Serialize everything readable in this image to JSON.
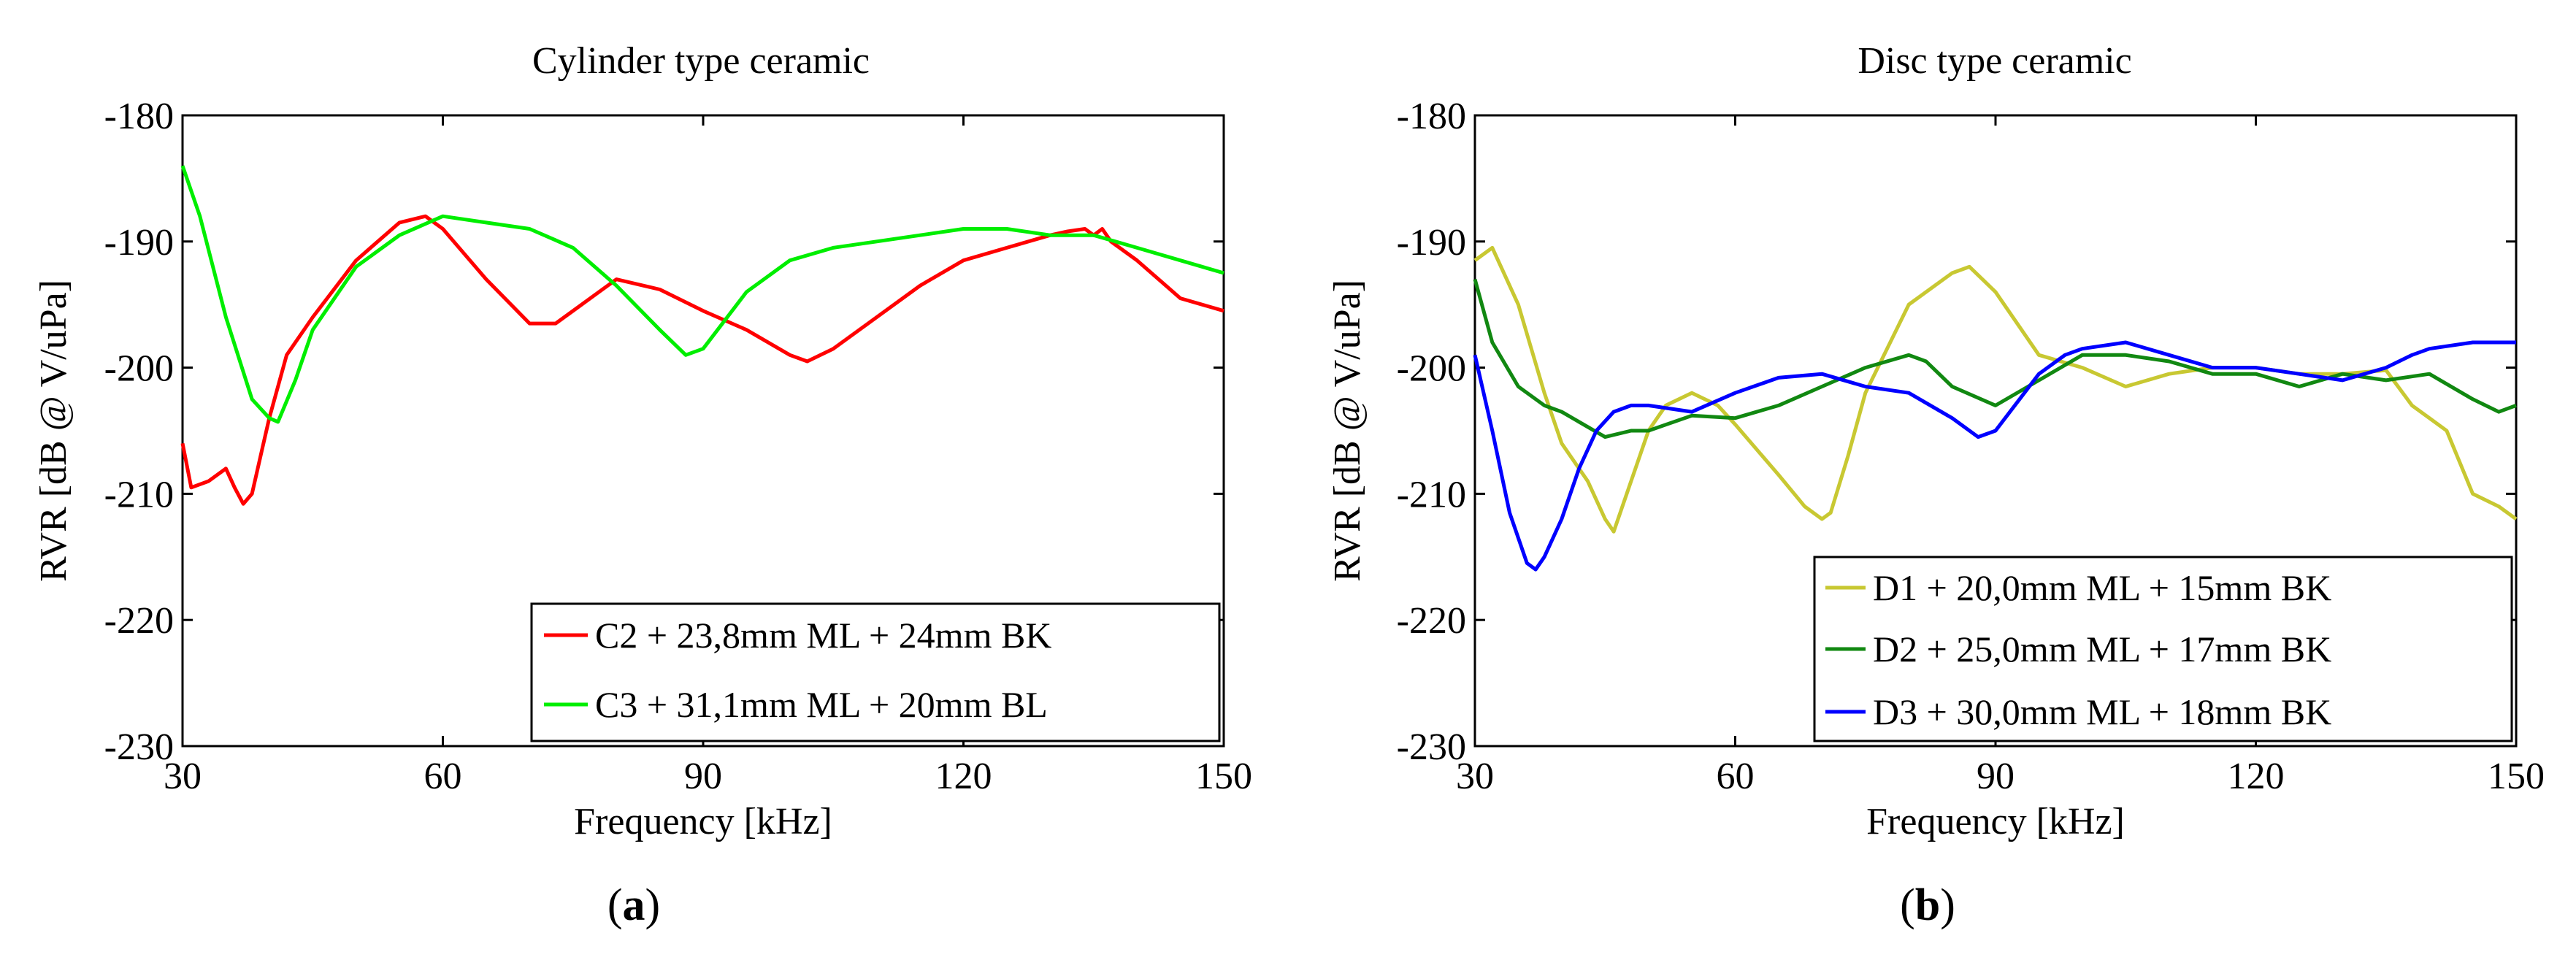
{
  "chart_data": [
    {
      "type": "line",
      "panel_label": "a",
      "title": "Cylinder type ceramic",
      "xlabel": "Frequency [kHz]",
      "ylabel": "RVR [dB @ V/uPa]",
      "xlim": [
        30,
        150
      ],
      "ylim": [
        -230,
        -180
      ],
      "xticks": [
        "30",
        "60",
        "90",
        "120",
        "150"
      ],
      "yticks": [
        "-180",
        "-190",
        "-200",
        "-210",
        "-220",
        "-230"
      ],
      "legend_position": "bottom-right",
      "series": [
        {
          "name": "C2 + 23,8mm ML + 24mm BK",
          "color": "#ff0000",
          "x": [
            30,
            31,
            33,
            35,
            36,
            37,
            38,
            39,
            40,
            42,
            45,
            50,
            55,
            58,
            60,
            65,
            70,
            73,
            75,
            78,
            80,
            85,
            90,
            95,
            100,
            102,
            105,
            110,
            115,
            120,
            125,
            130,
            132,
            134,
            135,
            136,
            137,
            140,
            145,
            150
          ],
          "y": [
            -206,
            -209.5,
            -209,
            -208,
            -209.5,
            -210.8,
            -210,
            -207,
            -204,
            -199,
            -196,
            -191.5,
            -188.5,
            -188,
            -189,
            -193,
            -196.5,
            -196.5,
            -195.5,
            -194,
            -193,
            -193.8,
            -195.5,
            -197,
            -199,
            -199.5,
            -198.5,
            -196,
            -193.5,
            -191.5,
            -190.5,
            -189.5,
            -189.2,
            -189,
            -189.5,
            -189,
            -190,
            -191.5,
            -194.5,
            -195.5
          ]
        },
        {
          "name": "C3 + 31,1mm ML + 20mm BL",
          "color": "#00ee00",
          "x": [
            30,
            32,
            35,
            38,
            40,
            41,
            43,
            45,
            50,
            55,
            60,
            65,
            70,
            75,
            80,
            85,
            88,
            90,
            95,
            100,
            105,
            110,
            115,
            120,
            125,
            130,
            135,
            140,
            145,
            150
          ],
          "y": [
            -184,
            -188,
            -196,
            -202.5,
            -204,
            -204.3,
            -201,
            -197,
            -192,
            -189.5,
            -188,
            -188.5,
            -189,
            -190.5,
            -193.5,
            -197,
            -199,
            -198.5,
            -194,
            -191.5,
            -190.5,
            -190,
            -189.5,
            -189,
            -189,
            -189.5,
            -189.5,
            -190.5,
            -191.5,
            -192.5
          ]
        }
      ]
    },
    {
      "type": "line",
      "panel_label": "b",
      "title": "Disc type ceramic",
      "xlabel": "Frequency [kHz]",
      "ylabel": "RVR [dB @ V/uPa]",
      "xlim": [
        30,
        150
      ],
      "ylim": [
        -230,
        -180
      ],
      "xticks": [
        "30",
        "60",
        "90",
        "120",
        "150"
      ],
      "yticks": [
        "-180",
        "-190",
        "-200",
        "-210",
        "-220",
        "-230"
      ],
      "legend_position": "bottom-right",
      "series": [
        {
          "name": "D1 + 20,0mm ML + 15mm BK",
          "color": "#c8c832",
          "x": [
            30,
            32,
            35,
            38,
            40,
            43,
            45,
            46,
            48,
            50,
            52,
            55,
            58,
            60,
            65,
            68,
            70,
            71,
            73,
            75,
            80,
            85,
            87,
            90,
            95,
            100,
            105,
            110,
            115,
            120,
            125,
            130,
            135,
            138,
            140,
            142,
            145,
            148,
            150
          ],
          "y": [
            -191.5,
            -190.5,
            -195,
            -202,
            -206,
            -209,
            -212,
            -213,
            -209,
            -205,
            -203,
            -202,
            -203,
            -204.5,
            -208.5,
            -211,
            -212,
            -211.5,
            -207,
            -202,
            -195,
            -192.5,
            -192,
            -194,
            -199,
            -200,
            -201.5,
            -200.5,
            -200,
            -200,
            -200.5,
            -200.5,
            -200.2,
            -203,
            -204,
            -205,
            -210,
            -211,
            -212
          ]
        },
        {
          "name": "D2 + 25,0mm ML + 17mm BK",
          "color": "#118811",
          "x": [
            30,
            32,
            35,
            38,
            40,
            45,
            48,
            50,
            55,
            60,
            65,
            70,
            75,
            80,
            82,
            85,
            90,
            95,
            100,
            105,
            110,
            115,
            120,
            125,
            130,
            135,
            140,
            145,
            148,
            150
          ],
          "y": [
            -193,
            -198,
            -201.5,
            -203,
            -203.5,
            -205.5,
            -205,
            -205,
            -203.8,
            -204,
            -203,
            -201.5,
            -200,
            -199,
            -199.5,
            -201.5,
            -203,
            -201,
            -199,
            -199,
            -199.5,
            -200.5,
            -200.5,
            -201.5,
            -200.5,
            -201,
            -200.5,
            -202.5,
            -203.5,
            -203
          ]
        },
        {
          "name": "D3 + 30,0mm ML + 18mm BK",
          "color": "#0000ff",
          "x": [
            30,
            32,
            34,
            36,
            37,
            38,
            40,
            42,
            44,
            46,
            48,
            50,
            55,
            60,
            65,
            70,
            75,
            80,
            85,
            88,
            90,
            95,
            98,
            100,
            105,
            110,
            115,
            120,
            125,
            130,
            135,
            138,
            140,
            145,
            150
          ],
          "y": [
            -199,
            -205,
            -211.5,
            -215.5,
            -216,
            -215,
            -212,
            -208,
            -205,
            -203.5,
            -203,
            -203,
            -203.5,
            -202,
            -200.8,
            -200.5,
            -201.5,
            -202,
            -204,
            -205.5,
            -205,
            -200.5,
            -199,
            -198.5,
            -198,
            -199,
            -200,
            -200,
            -200.5,
            -201,
            -200,
            -199,
            -198.5,
            -198,
            -198
          ]
        }
      ]
    }
  ]
}
